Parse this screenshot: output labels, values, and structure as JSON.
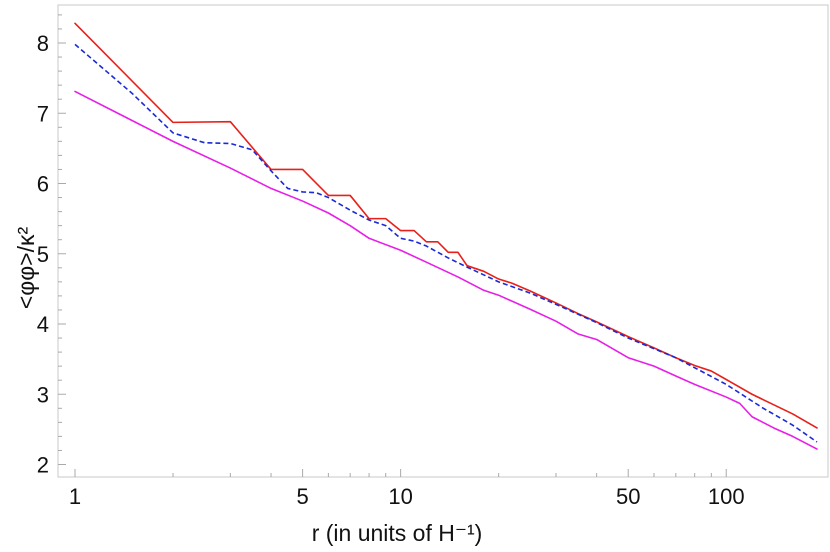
{
  "chart_data": {
    "type": "line",
    "xscale": "log",
    "xlabel": "r (in units of H⁻¹)",
    "ylabel": "<φφ>/κ²",
    "xlim": [
      1,
      190
    ],
    "ylim": [
      2.0,
      8.55
    ],
    "grid": false,
    "legend": "none",
    "x_ticks": [
      1,
      5,
      10,
      50,
      100
    ],
    "x_tick_labels": [
      "1",
      "5",
      "10",
      "50",
      "100"
    ],
    "y_ticks": [
      2,
      3,
      4,
      5,
      6,
      7,
      8
    ],
    "y_tick_labels": [
      "2",
      "3",
      "4",
      "5",
      "6",
      "7",
      "8"
    ],
    "series": [
      {
        "color": "#e8201a",
        "style": "solid",
        "x": [
          1,
          2,
          3,
          4,
          5,
          6,
          7,
          8,
          9,
          10,
          11,
          12,
          13,
          14,
          15,
          16,
          18,
          20,
          22,
          25,
          30,
          35,
          40,
          50,
          60,
          70,
          80,
          90,
          100,
          120,
          140,
          160,
          190
        ],
        "y": [
          8.28,
          6.87,
          6.88,
          6.2,
          6.2,
          5.83,
          5.83,
          5.5,
          5.5,
          5.33,
          5.33,
          5.17,
          5.17,
          5.02,
          5.02,
          4.83,
          4.75,
          4.64,
          4.58,
          4.47,
          4.3,
          4.15,
          4.03,
          3.82,
          3.66,
          3.52,
          3.41,
          3.33,
          3.21,
          3.0,
          2.85,
          2.72,
          2.52
        ]
      },
      {
        "color": "#1a2ad6",
        "style": "dashed",
        "x": [
          1,
          1.5,
          2,
          2.5,
          3,
          3.5,
          4,
          4.5,
          5,
          5.5,
          6,
          7,
          8,
          9,
          10,
          11,
          12,
          14,
          16,
          20,
          25,
          30,
          40,
          50,
          70,
          100,
          130,
          160,
          190
        ],
        "y": [
          7.98,
          7.28,
          6.72,
          6.58,
          6.57,
          6.48,
          6.18,
          5.93,
          5.88,
          5.87,
          5.8,
          5.62,
          5.48,
          5.4,
          5.22,
          5.18,
          5.11,
          4.94,
          4.81,
          4.6,
          4.44,
          4.28,
          4.02,
          3.8,
          3.52,
          3.14,
          2.8,
          2.56,
          2.32
        ]
      },
      {
        "color": "#e81ee8",
        "style": "solid",
        "x": [
          1,
          2,
          3,
          4,
          5,
          6,
          7,
          8,
          10,
          12,
          15,
          18,
          20,
          25,
          30,
          35,
          40,
          50,
          60,
          70,
          80,
          100,
          110,
          120,
          140,
          160,
          190
        ],
        "y": [
          7.31,
          6.6,
          6.22,
          5.93,
          5.75,
          5.58,
          5.4,
          5.22,
          5.05,
          4.88,
          4.67,
          4.48,
          4.41,
          4.21,
          4.04,
          3.86,
          3.78,
          3.52,
          3.4,
          3.26,
          3.14,
          2.96,
          2.87,
          2.68,
          2.52,
          2.4,
          2.22
        ]
      }
    ]
  }
}
